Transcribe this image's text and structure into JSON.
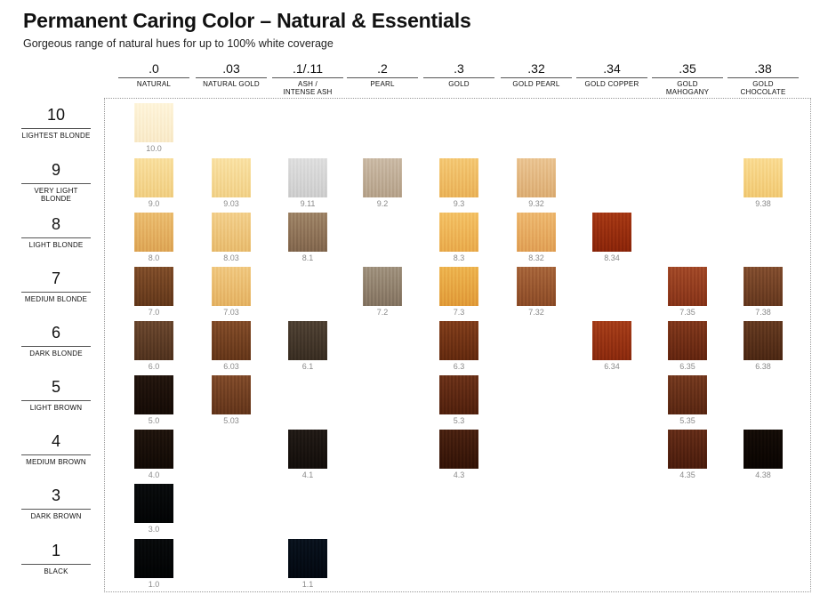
{
  "title": "Permanent Caring Color – Natural & Essentials",
  "subtitle": "Gorgeous range of natural hues for up to 100% white coverage",
  "columns": [
    {
      "code": ".0",
      "name": "NATURAL"
    },
    {
      "code": ".03",
      "name": "NATURAL GOLD"
    },
    {
      "code": ".1/.11",
      "name": "ASH / INTENSE ASH"
    },
    {
      "code": ".2",
      "name": "PEARL"
    },
    {
      "code": ".3",
      "name": "GOLD"
    },
    {
      "code": ".32",
      "name": "GOLD PEARL"
    },
    {
      "code": ".34",
      "name": "GOLD COPPER"
    },
    {
      "code": ".35",
      "name": "GOLD MAHOGANY"
    },
    {
      "code": ".38",
      "name": "GOLD CHOCOLATE"
    }
  ],
  "rows": [
    {
      "level": "10",
      "name": "LIGHTEST BLONDE"
    },
    {
      "level": "9",
      "name": "VERY LIGHT BLONDE"
    },
    {
      "level": "8",
      "name": "LIGHT BLONDE"
    },
    {
      "level": "7",
      "name": "MEDIUM BLONDE"
    },
    {
      "level": "6",
      "name": "DARK BLONDE"
    },
    {
      "level": "5",
      "name": "LIGHT BROWN"
    },
    {
      "level": "4",
      "name": "MEDIUM BROWN"
    },
    {
      "level": "3",
      "name": "DARK BROWN"
    },
    {
      "level": "1",
      "name": "BLACK"
    }
  ],
  "shades": [
    {
      "label": "10.0",
      "row": 0,
      "col": 0,
      "color": "#ead3b4"
    },
    {
      "label": "9.0",
      "row": 1,
      "col": 0,
      "color": "#dcb98a"
    },
    {
      "label": "9.03",
      "row": 1,
      "col": 1,
      "color": "#ddbb8d"
    },
    {
      "label": "9.11",
      "row": 1,
      "col": 2,
      "color": "#b8b8b8"
    },
    {
      "label": "9.2",
      "row": 1,
      "col": 3,
      "color": "#a79b8e"
    },
    {
      "label": "9.3",
      "row": 1,
      "col": 4,
      "color": "#d3a574"
    },
    {
      "label": "9.32",
      "row": 1,
      "col": 5,
      "color": "#c5a283"
    },
    {
      "label": "9.38",
      "row": 1,
      "col": 8,
      "color": "#ddb583"
    },
    {
      "label": "8.0",
      "row": 2,
      "col": 0,
      "color": "#c69d72"
    },
    {
      "label": "8.03",
      "row": 2,
      "col": 1,
      "color": "#d1ab80"
    },
    {
      "label": "8.1",
      "row": 2,
      "col": 2,
      "color": "#8a7c6d"
    },
    {
      "label": "8.3",
      "row": 2,
      "col": 4,
      "color": "#d2a06c"
    },
    {
      "label": "8.32",
      "row": 2,
      "col": 5,
      "color": "#c99a72"
    },
    {
      "label": "8.34",
      "row": 2,
      "col": 6,
      "color": "#8e4f2e"
    },
    {
      "label": "7.0",
      "row": 3,
      "col": 0,
      "color": "#7a5e44"
    },
    {
      "label": "7.03",
      "row": 3,
      "col": 1,
      "color": "#cda57a"
    },
    {
      "label": "7.2",
      "row": 3,
      "col": 3,
      "color": "#8b8379"
    },
    {
      "label": "7.3",
      "row": 3,
      "col": 4,
      "color": "#c9975f"
    },
    {
      "label": "7.32",
      "row": 3,
      "col": 5,
      "color": "#8f6c51"
    },
    {
      "label": "7.35",
      "row": 3,
      "col": 7,
      "color": "#8c5b42"
    },
    {
      "label": "7.38",
      "row": 3,
      "col": 8,
      "color": "#7b5e48"
    },
    {
      "label": "6.0",
      "row": 4,
      "col": 0,
      "color": "#6f5a48"
    },
    {
      "label": "6.03",
      "row": 4,
      "col": 1,
      "color": "#7b5d43"
    },
    {
      "label": "6.1",
      "row": 4,
      "col": 2,
      "color": "#5f564c"
    },
    {
      "label": "6.3",
      "row": 4,
      "col": 4,
      "color": "#7a5336"
    },
    {
      "label": "6.34",
      "row": 4,
      "col": 6,
      "color": "#8e5334"
    },
    {
      "label": "6.35",
      "row": 4,
      "col": 7,
      "color": "#7a4f37"
    },
    {
      "label": "6.38",
      "row": 4,
      "col": 8,
      "color": "#6c513c"
    },
    {
      "label": "5.0",
      "row": 5,
      "col": 0,
      "color": "#3e3026"
    },
    {
      "label": "5.03",
      "row": 5,
      "col": 1,
      "color": "#7a5c44"
    },
    {
      "label": "5.3",
      "row": 5,
      "col": 4,
      "color": "#6f4a33"
    },
    {
      "label": "5.35",
      "row": 5,
      "col": 7,
      "color": "#74503a"
    },
    {
      "label": "4.0",
      "row": 6,
      "col": 0,
      "color": "#3a2e24"
    },
    {
      "label": "4.1",
      "row": 6,
      "col": 2,
      "color": "#3c3530"
    },
    {
      "label": "4.3",
      "row": 6,
      "col": 4,
      "color": "#5b3c29"
    },
    {
      "label": "4.35",
      "row": 6,
      "col": 7,
      "color": "#6b4632"
    },
    {
      "label": "4.38",
      "row": 6,
      "col": 8,
      "color": "#2e231a"
    },
    {
      "label": "3.0",
      "row": 7,
      "col": 0,
      "color": "#1e2224"
    },
    {
      "label": "1.0",
      "row": 8,
      "col": 0,
      "color": "#1c2022"
    },
    {
      "label": "1.1",
      "row": 8,
      "col": 2,
      "color": "#1e2b38"
    }
  ]
}
